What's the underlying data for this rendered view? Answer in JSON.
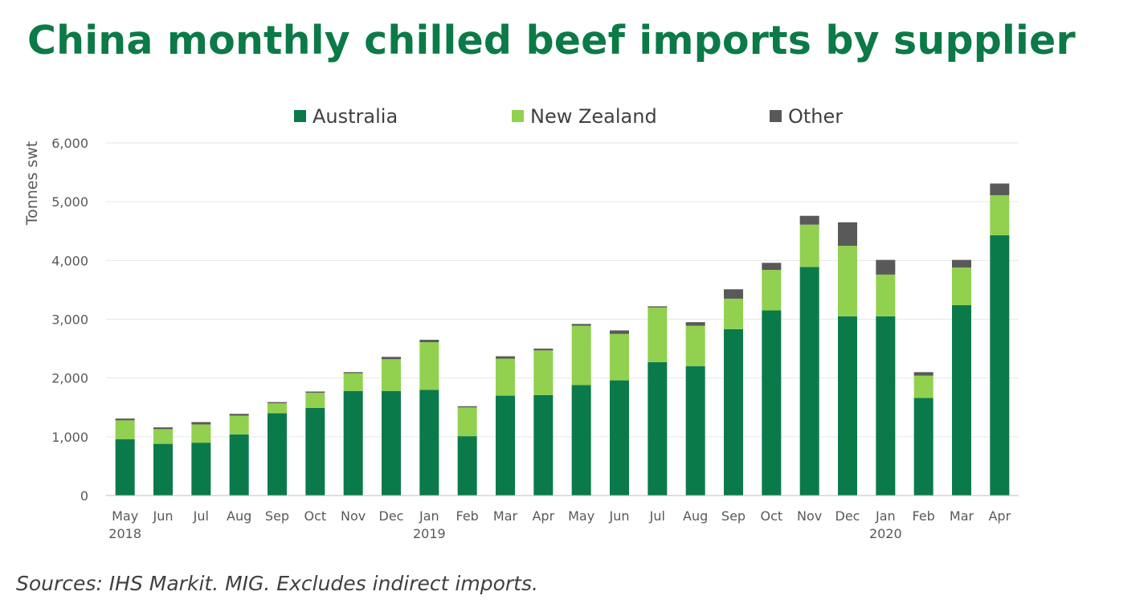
{
  "title": "China monthly chilled beef imports by supplier",
  "source": "Sources: IHS Markit. MIG. Excludes indirect imports.",
  "colors": {
    "australia": "#0b7a4b",
    "new_zealand": "#92d050",
    "other": "#595959",
    "grid": "#e6e6e6",
    "axis": "#bfbfbf"
  },
  "chart_data": {
    "type": "bar",
    "stacked": true,
    "title": "China monthly chilled beef imports by supplier",
    "ylabel": "Tonnes swt",
    "xlabel": "",
    "ylim": [
      0,
      6000
    ],
    "yticks": [
      "0",
      "1,000",
      "2,000",
      "3,000",
      "4,000",
      "5,000",
      "6,000"
    ],
    "grid": true,
    "legend_position": "top",
    "categories": [
      "May",
      "Jun",
      "Jul",
      "Aug",
      "Sep",
      "Oct",
      "Nov",
      "Dec",
      "Jan",
      "Feb",
      "Mar",
      "Apr",
      "May",
      "Jun",
      "Jul",
      "Aug",
      "Sep",
      "Oct",
      "Nov",
      "Dec",
      "Jan",
      "Feb",
      "Mar",
      "Apr"
    ],
    "year_labels": [
      {
        "category_index": 0,
        "label": "2018"
      },
      {
        "category_index": 8,
        "label": "2019"
      },
      {
        "category_index": 20,
        "label": "2020"
      }
    ],
    "series": [
      {
        "name": "Australia",
        "color_key": "australia",
        "values": [
          960,
          880,
          900,
          1040,
          1400,
          1490,
          1780,
          1780,
          1800,
          1010,
          1700,
          1710,
          1880,
          1960,
          2270,
          2200,
          2830,
          3150,
          3890,
          3050,
          3050,
          1660,
          3240,
          4430
        ]
      },
      {
        "name": "New Zealand",
        "color_key": "new_zealand",
        "values": [
          320,
          250,
          310,
          320,
          170,
          260,
          300,
          540,
          810,
          490,
          630,
          760,
          1010,
          790,
          930,
          690,
          520,
          690,
          720,
          1200,
          710,
          380,
          640,
          680
        ]
      },
      {
        "name": "Other",
        "color_key": "other",
        "values": [
          30,
          30,
          40,
          30,
          20,
          20,
          20,
          40,
          40,
          20,
          40,
          30,
          30,
          60,
          20,
          60,
          160,
          120,
          150,
          400,
          250,
          60,
          130,
          200
        ]
      }
    ]
  }
}
